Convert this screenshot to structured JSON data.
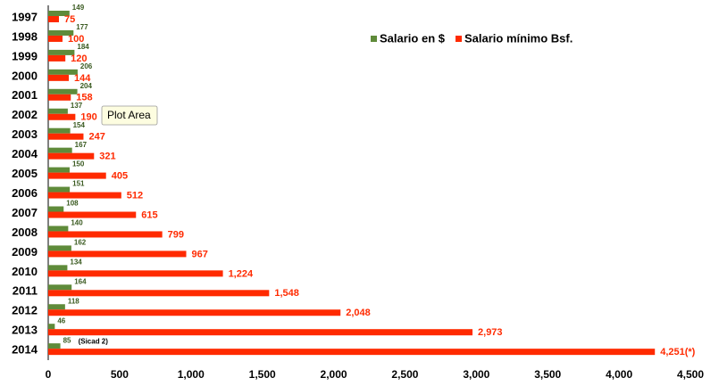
{
  "chart_data": {
    "type": "hbar",
    "categories": [
      "1997",
      "1998",
      "1999",
      "2000",
      "2001",
      "2002",
      "2003",
      "2004",
      "2005",
      "2006",
      "2007",
      "2008",
      "2009",
      "2010",
      "2011",
      "2012",
      "2013",
      "2014"
    ],
    "series": [
      {
        "name": "Salario en $",
        "color": "#5f8b3a",
        "values": [
          149,
          177,
          184,
          206,
          204,
          137,
          154,
          167,
          150,
          151,
          108,
          140,
          162,
          134,
          164,
          118,
          46,
          85
        ]
      },
      {
        "name": "Salario mínimo Bsf.",
        "color": "#ff2a00",
        "values": [
          75,
          100,
          120,
          144,
          158,
          190,
          247,
          321,
          405,
          512,
          615,
          799,
          967,
          1224,
          1548,
          2048,
          2973,
          4251
        ],
        "value_labels": [
          "75",
          "100",
          "120",
          "144",
          "158",
          "190",
          "247",
          "321",
          "405",
          "512",
          "615",
          "799",
          "967",
          "1,224",
          "1,548",
          "2,048",
          "2,973",
          "4,251(*)"
        ]
      }
    ],
    "xlim": [
      0,
      4500
    ],
    "xticks": [
      0,
      500,
      {
        "value": 1000,
        "label": "1,000"
      },
      {
        "value": 1500,
        "label": "1,500"
      },
      {
        "value": 2000,
        "label": "2,000"
      },
      {
        "value": 2500,
        "label": "2,500"
      },
      {
        "value": 3000,
        "label": "3,000"
      },
      {
        "value": 3500,
        "label": "3,500"
      },
      {
        "value": 4000,
        "label": "4,000"
      },
      {
        "value": 4500,
        "label": "4,500"
      }
    ],
    "grid": false,
    "legend": "top-right",
    "annotations": [
      {
        "text": "(Sicad 2)"
      }
    ],
    "tooltip": "Plot Area"
  }
}
